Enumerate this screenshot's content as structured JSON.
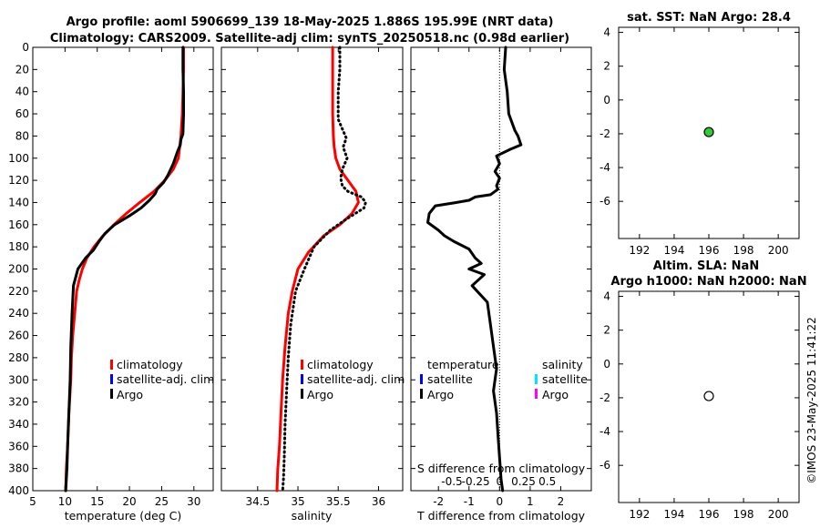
{
  "header": {
    "line1": "Argo profile: aoml 5906699_139 18-May-2025 1.886S 195.99E (NRT data)",
    "line2": "Climatology: CARS2009. Satellite-adj clim: synTS_20250518.nc (0.98d earlier)"
  },
  "timestamp": "©IMOS 23-May-2025 11:41:22",
  "legend": {
    "climatology": "climatology",
    "satellite_adj": "satellite-adj. clim",
    "argo": "Argo",
    "temperature": "temperature",
    "salinity": "salinity",
    "satellite": "satellite"
  },
  "colors": {
    "climatology": "#ff0000",
    "satellite_adj": "#0000ff",
    "argo": "#000000",
    "sat_temp": "#0000ff",
    "sat_sal": "#00e5ff",
    "argo_sal": "#ff00ff",
    "sst_marker": "#33cc33"
  },
  "chart_data": [
    {
      "type": "line",
      "id": "temperature",
      "xlabel": "temperature (deg C)",
      "ylabel": "",
      "xlim": [
        5,
        33
      ],
      "ylim": [
        400,
        0
      ],
      "xticks": [
        5,
        10,
        15,
        20,
        25,
        30
      ],
      "yticks": [
        0,
        20,
        40,
        60,
        80,
        100,
        120,
        140,
        160,
        180,
        200,
        220,
        240,
        260,
        280,
        300,
        320,
        340,
        360,
        380,
        400
      ],
      "series": [
        {
          "name": "climatology",
          "style": "solid",
          "color": "#ff0000",
          "x": [
            28.4,
            28.4,
            28.3,
            28.2,
            28.0,
            27.6,
            26.8,
            25.5,
            23.8,
            21.6,
            19.5,
            17.6,
            15.9,
            14.5,
            13.4,
            12.7,
            12.2,
            11.8,
            11.5,
            11.2,
            11.0,
            10.9,
            10.6,
            10.4,
            10.2,
            10.1
          ],
          "y": [
            0,
            20,
            40,
            60,
            80,
            100,
            110,
            120,
            130,
            140,
            150,
            160,
            170,
            180,
            190,
            200,
            210,
            220,
            240,
            260,
            280,
            300,
            330,
            360,
            380,
            400
          ]
        },
        {
          "name": "Argo",
          "style": "solid",
          "color": "#000000",
          "x": [
            28.3,
            28.3,
            28.4,
            28.4,
            28.3,
            28.0,
            27.9,
            27.4,
            26.8,
            26.0,
            25.3,
            24.3,
            24.0,
            23.1,
            21.8,
            20.0,
            17.7,
            16.2,
            15.3,
            14.4,
            13.2,
            12.0,
            11.3,
            11.1,
            10.9,
            10.8,
            10.6,
            10.4,
            10.3,
            10.2,
            10.1
          ],
          "y": [
            0,
            20,
            40,
            60,
            78,
            83,
            88,
            95,
            105,
            115,
            122,
            128,
            132,
            138,
            145,
            152,
            160,
            168,
            175,
            183,
            190,
            200,
            215,
            240,
            270,
            300,
            330,
            360,
            380,
            390,
            400
          ]
        }
      ]
    },
    {
      "type": "line",
      "id": "salinity",
      "xlabel": "salinity",
      "ylabel": "",
      "xlim": [
        34.05,
        36.3
      ],
      "ylim": [
        400,
        0
      ],
      "xticks": [
        34.5,
        35,
        35.5,
        36
      ],
      "series": [
        {
          "name": "climatology",
          "style": "solid",
          "color": "#ff0000",
          "x": [
            35.43,
            35.43,
            35.43,
            35.43,
            35.44,
            35.45,
            35.47,
            35.52,
            35.62,
            35.72,
            35.75,
            35.67,
            35.52,
            35.32,
            35.13,
            35.0,
            34.93,
            34.88,
            34.84,
            34.81,
            34.79,
            34.77,
            34.75,
            34.74
          ],
          "y": [
            0,
            20,
            40,
            60,
            80,
            90,
            100,
            110,
            120,
            130,
            140,
            150,
            160,
            170,
            185,
            200,
            220,
            240,
            270,
            300,
            330,
            360,
            380,
            400
          ]
        },
        {
          "name": "Argo",
          "style": "dotted",
          "color": "#000000",
          "x": [
            35.52,
            35.52,
            35.5,
            35.5,
            35.6,
            35.56,
            35.61,
            35.55,
            35.53,
            35.55,
            35.62,
            35.79,
            35.84,
            35.82,
            35.6,
            35.4,
            35.2,
            35.08,
            34.97,
            34.91,
            34.88,
            34.86,
            34.84,
            34.83,
            34.82,
            34.81
          ],
          "y": [
            0,
            20,
            40,
            65,
            82,
            90,
            100,
            110,
            118,
            125,
            130,
            135,
            140,
            145,
            155,
            165,
            180,
            200,
            220,
            250,
            280,
            310,
            340,
            370,
            390,
            400
          ]
        }
      ]
    },
    {
      "type": "line",
      "id": "difference",
      "xlabel": "T difference from climatology",
      "x2label": "S difference from climatology",
      "ylabel": "",
      "xlim": [
        -2.9,
        3.0
      ],
      "ylim": [
        400,
        0
      ],
      "xticks": [
        -2,
        -1,
        0,
        1,
        2
      ],
      "x2ticks": [
        "-0.5",
        "-0.25",
        "0",
        "0.25",
        "0.5"
      ],
      "zero_line": 0,
      "series": [
        {
          "name": "Argo",
          "style": "solid",
          "color": "#000000",
          "x": [
            0.2,
            0.15,
            0.25,
            0.3,
            0.5,
            0.6,
            0.7,
            0.35,
            -0.1,
            0.0,
            -0.15,
            0.0,
            -0.1,
            -0.05,
            -0.3,
            -0.8,
            -1.0,
            -1.4,
            -2.1,
            -2.3,
            -2.35,
            -2.0,
            -1.8,
            -1.5,
            -1.0,
            -0.8,
            -0.6,
            -1.0,
            -0.5,
            -0.9,
            -0.4,
            -0.3,
            -0.2,
            -0.1,
            -0.2,
            -0.1,
            -0.05,
            0.0,
            0.05,
            0.1
          ],
          "y": [
            0,
            20,
            40,
            60,
            75,
            80,
            88,
            92,
            98,
            105,
            112,
            118,
            125,
            128,
            133,
            135,
            138,
            140,
            143,
            150,
            158,
            165,
            170,
            175,
            182,
            190,
            195,
            200,
            205,
            215,
            230,
            250,
            270,
            290,
            310,
            330,
            350,
            370,
            390,
            400
          ]
        }
      ]
    },
    {
      "type": "scatter",
      "id": "sst",
      "title": "sat. SST: NaN Argo: 28.4",
      "xlim": [
        190.8,
        201.2
      ],
      "ylim": [
        -8.2,
        4.3
      ],
      "xticks": [
        192,
        194,
        196,
        198,
        200
      ],
      "yticks": [
        4,
        2,
        0,
        -2,
        -4,
        -6
      ],
      "points": [
        {
          "x": 196.0,
          "y": -1.9,
          "fill": "#33cc33"
        }
      ]
    },
    {
      "type": "scatter",
      "id": "sla",
      "title_line1": "Altim. SLA: NaN",
      "title_line2": "Argo h1000: NaN h2000: NaN",
      "xlim": [
        190.8,
        201.2
      ],
      "ylim": [
        -8.2,
        4.3
      ],
      "xticks": [
        192,
        194,
        196,
        198,
        200
      ],
      "yticks": [
        4,
        2,
        0,
        -2,
        -4,
        -6
      ],
      "points": [
        {
          "x": 196.0,
          "y": -1.9,
          "fill": "#ffffff"
        }
      ]
    }
  ]
}
